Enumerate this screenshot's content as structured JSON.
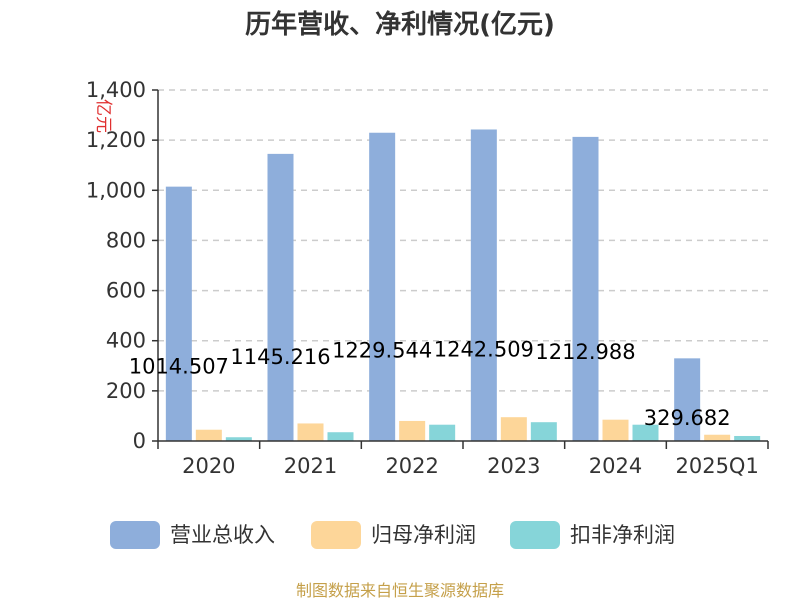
{
  "chart_data": {
    "type": "bar",
    "title": "历年营收、净利情况(亿元)",
    "ylabel": "亿元",
    "ylim": [
      0,
      1400
    ],
    "yticks": [
      0,
      200,
      400,
      600,
      800,
      1000,
      1200,
      1400
    ],
    "ytick_labels": [
      "0",
      "200",
      "400",
      "600",
      "800",
      "1,000",
      "1,200",
      "1,400"
    ],
    "grid": true,
    "legend": "bottom",
    "categories": [
      "2020",
      "2021",
      "2022",
      "2023",
      "2024",
      "2025Q1"
    ],
    "series": [
      {
        "name": "营业总收入",
        "color": "#8eaedb",
        "values": [
          1014.507,
          1145.216,
          1229.544,
          1242.509,
          1212.988,
          329.682
        ],
        "labels": [
          "1014.507",
          "1145.216",
          "1229.544",
          "1242.509",
          "1212.988",
          "329.682"
        ]
      },
      {
        "name": "归母净利润",
        "color": "#fdd699",
        "values": [
          45,
          70,
          80,
          95,
          85,
          25
        ]
      },
      {
        "name": "扣非净利润",
        "color": "#86d5d9",
        "values": [
          15,
          35,
          65,
          75,
          65,
          20
        ]
      }
    ],
    "source": "制图数据来自恒生聚源数据库"
  }
}
